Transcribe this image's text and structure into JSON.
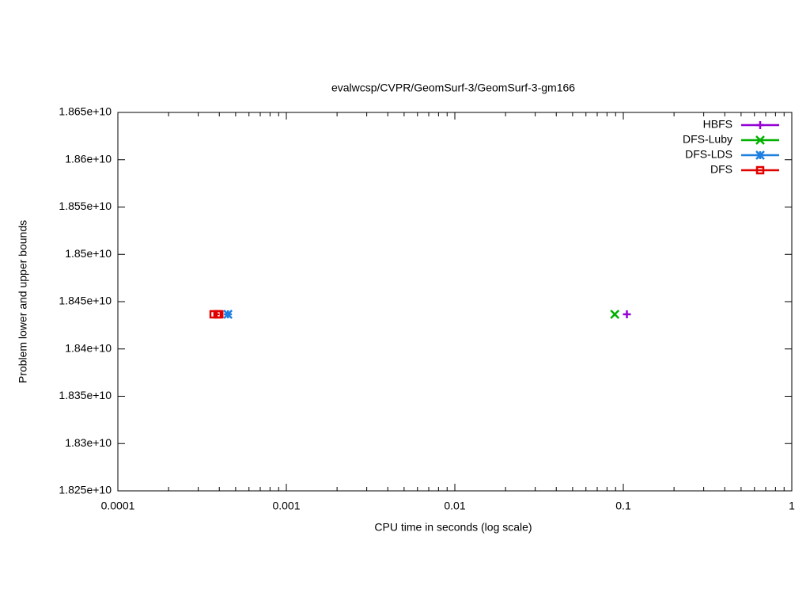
{
  "chart_data": {
    "type": "scatter",
    "title": "evalwcsp/CVPR/GeomSurf-3/GeomSurf-3-gm166",
    "xlabel": "CPU time in seconds (log scale)",
    "ylabel": "Problem lower and upper bounds",
    "xscale": "log",
    "xlim": [
      0.0001,
      1
    ],
    "xticks": [
      0.0001,
      0.001,
      0.01,
      0.1,
      1
    ],
    "ylim": [
      18250000000,
      18650000000
    ],
    "yticks": [
      {
        "value": 18250000000,
        "label": "1.825e+10"
      },
      {
        "value": 18300000000,
        "label": "1.83e+10"
      },
      {
        "value": 18350000000,
        "label": "1.835e+10"
      },
      {
        "value": 18400000000,
        "label": "1.84e+10"
      },
      {
        "value": 18450000000,
        "label": "1.845e+10"
      },
      {
        "value": 18500000000,
        "label": "1.85e+10"
      },
      {
        "value": 18550000000,
        "label": "1.855e+10"
      },
      {
        "value": 18600000000,
        "label": "1.86e+10"
      },
      {
        "value": 18650000000,
        "label": "1.865e+10"
      }
    ],
    "legend": "top right",
    "series": [
      {
        "name": "HBFS",
        "color": "#9400d3",
        "marker": "plus",
        "x": [
          0.105
        ],
        "y": [
          18436600000
        ]
      },
      {
        "name": "DFS-Luby",
        "color": "#00b000",
        "marker": "cross",
        "x": [
          0.089
        ],
        "y": [
          18436600000
        ]
      },
      {
        "name": "DFS-LDS",
        "color": "#1f7fe0",
        "marker": "star",
        "x": [
          0.00045
        ],
        "y": [
          18436600000
        ]
      },
      {
        "name": "DFS",
        "color": "#e00000",
        "marker": "square",
        "x": [
          0.00037,
          0.00039,
          0.0004
        ],
        "y": [
          18436600000,
          18436600000,
          18436600000
        ]
      }
    ]
  }
}
